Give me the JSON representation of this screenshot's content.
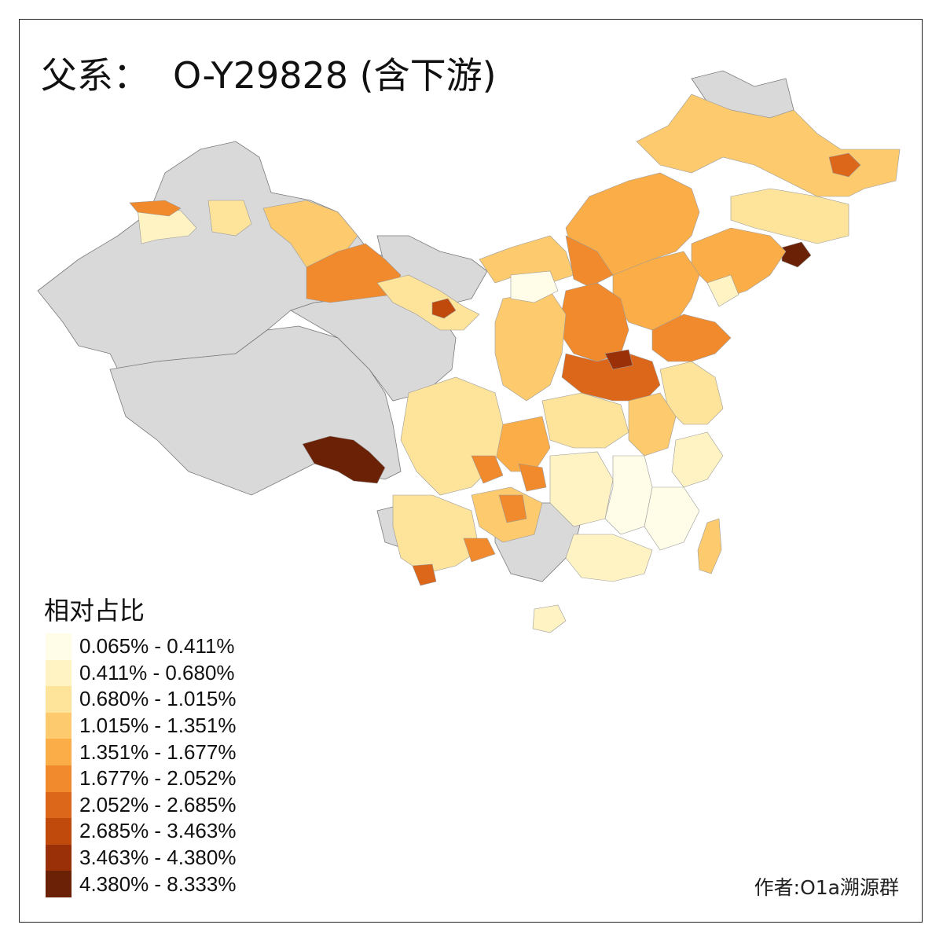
{
  "title": {
    "prefix": "父系：",
    "haplogroup": "O-Y29828 (含下游)"
  },
  "legend": {
    "title": "相对占比",
    "classes": [
      {
        "label": "0.065% - 0.411%",
        "color": "#FFFDE7"
      },
      {
        "label": "0.411% - 0.680%",
        "color": "#FFF3C4"
      },
      {
        "label": "0.680% - 1.015%",
        "color": "#FEE39A"
      },
      {
        "label": "1.015% - 1.351%",
        "color": "#FDCB6E"
      },
      {
        "label": "1.351% - 1.677%",
        "color": "#FBAE48"
      },
      {
        "label": "1.677% - 2.052%",
        "color": "#F08A2D"
      },
      {
        "label": "2.052% - 2.685%",
        "color": "#DC671A"
      },
      {
        "label": "2.685% - 3.463%",
        "color": "#BF4A0C"
      },
      {
        "label": "3.463% - 4.380%",
        "color": "#993008"
      },
      {
        "label": "4.380% - 8.333%",
        "color": "#6B2106"
      }
    ]
  },
  "no_data_color": "#D9D9D9",
  "credit": "作者:O1a溯源群"
}
